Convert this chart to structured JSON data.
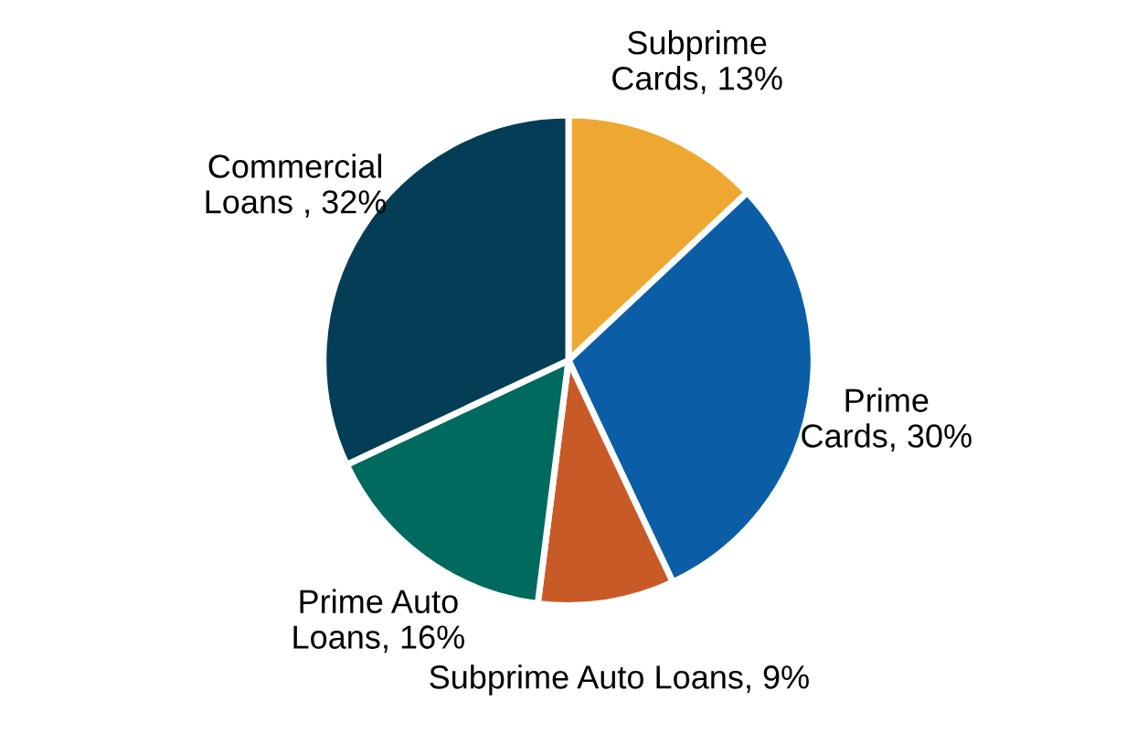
{
  "chart_data": {
    "type": "pie",
    "categories": [
      "Subprime\nCards, 13%",
      "Prime\nCards, 30%",
      "Subprime Auto Loans, 9%",
      "Prime Auto\nLoans, 16%",
      "Commercial\nLoans , 32%"
    ],
    "values": [
      13,
      30,
      9,
      16,
      32
    ],
    "colors": [
      "#eea831",
      "#0b5ea6",
      "#c85a27",
      "#006a5e",
      "#033d56"
    ],
    "legend": false
  }
}
